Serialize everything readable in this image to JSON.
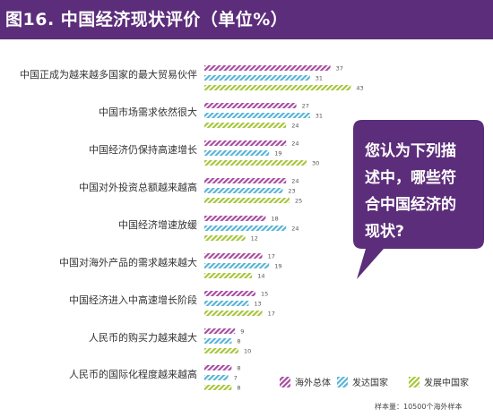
{
  "title": "图16. 中国经济现状评价（单位%）",
  "bubble_lines": [
    "您认为下列描",
    "述中，哪些符",
    "合中国经济的",
    "现状?"
  ],
  "sample_note": "样本量：10500个海外样本",
  "colors": {
    "header": "#5c2d7a",
    "bubble": "#5c2d7a",
    "series": [
      "#a94ca0",
      "#58b4d6",
      "#a7c63c"
    ]
  },
  "chart_data": {
    "type": "bar",
    "orientation": "horizontal",
    "xlim": [
      0,
      45
    ],
    "grid": false,
    "legend_position": "bottom-right",
    "categories": [
      "中国正成为越来越多国家的最大贸易伙伴",
      "中国市场需求依然很大",
      "中国经济仍保持高速增长",
      "中国对外投资总额越来越高",
      "中国经济增速放缓",
      "中国对海外产品的需求越来越大",
      "中国经济进入中高速增长阶段",
      "人民币的购买力越来越大",
      "人民币的国际化程度越来越高"
    ],
    "series": [
      {
        "name": "海外总体",
        "values": [
          37,
          27,
          24,
          24,
          18,
          17,
          15,
          9,
          8
        ]
      },
      {
        "name": "发达国家",
        "values": [
          31,
          31,
          19,
          23,
          24,
          19,
          13,
          8,
          7
        ]
      },
      {
        "name": "发展中国家",
        "values": [
          43,
          24,
          30,
          25,
          12,
          14,
          17,
          10,
          8
        ]
      }
    ]
  }
}
